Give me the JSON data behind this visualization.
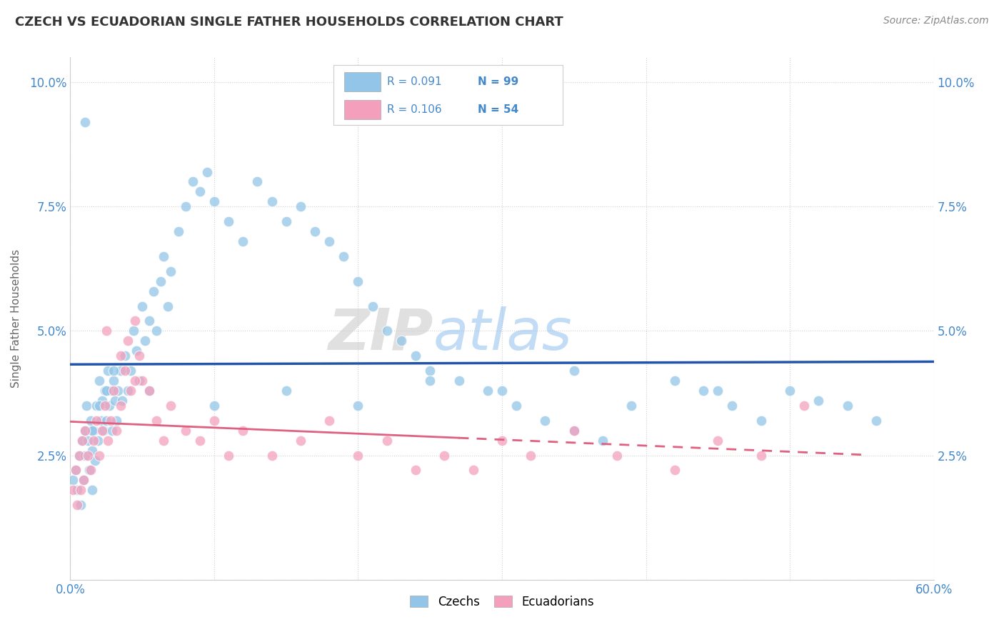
{
  "title": "CZECH VS ECUADORIAN SINGLE FATHER HOUSEHOLDS CORRELATION CHART",
  "source": "Source: ZipAtlas.com",
  "ylabel": "Single Father Households",
  "xlim": [
    0.0,
    0.6
  ],
  "ylim": [
    0.0,
    0.105
  ],
  "xticks": [
    0.0,
    0.1,
    0.2,
    0.3,
    0.4,
    0.5,
    0.6
  ],
  "xticklabels": [
    "0.0%",
    "",
    "",
    "",
    "",
    "",
    "60.0%"
  ],
  "yticks": [
    0.0,
    0.025,
    0.05,
    0.075,
    0.1
  ],
  "yticklabels": [
    "",
    "2.5%",
    "5.0%",
    "7.5%",
    "10.0%"
  ],
  "czech_R": "0.091",
  "czech_N": "99",
  "ecuadorian_R": "0.106",
  "ecuadorian_N": "54",
  "czech_color": "#92C5E8",
  "ecuadorian_color": "#F4A0BC",
  "czech_line_color": "#2255AA",
  "ecuadorian_line_color": "#E06080",
  "watermark_ZIP": "ZIP",
  "watermark_atlas": "atlas",
  "background_color": "#FFFFFF",
  "grid_color": "#D0D0D0",
  "legend_label_czech": "Czechs",
  "legend_label_ecuadorian": "Ecuadorians",
  "tick_color": "#4488CC",
  "legend_text_color": "#4488CC",
  "legend_N_color": "#4488CC",
  "czech_x": [
    0.002,
    0.004,
    0.005,
    0.006,
    0.007,
    0.008,
    0.009,
    0.01,
    0.01,
    0.011,
    0.012,
    0.013,
    0.014,
    0.015,
    0.015,
    0.016,
    0.017,
    0.018,
    0.019,
    0.02,
    0.021,
    0.022,
    0.023,
    0.024,
    0.025,
    0.026,
    0.027,
    0.028,
    0.029,
    0.03,
    0.031,
    0.032,
    0.033,
    0.035,
    0.036,
    0.038,
    0.04,
    0.042,
    0.044,
    0.046,
    0.048,
    0.05,
    0.052,
    0.055,
    0.058,
    0.06,
    0.063,
    0.065,
    0.068,
    0.07,
    0.075,
    0.08,
    0.085,
    0.09,
    0.095,
    0.1,
    0.11,
    0.12,
    0.13,
    0.14,
    0.15,
    0.16,
    0.17,
    0.18,
    0.19,
    0.2,
    0.21,
    0.22,
    0.23,
    0.24,
    0.25,
    0.27,
    0.29,
    0.31,
    0.33,
    0.35,
    0.37,
    0.39,
    0.42,
    0.44,
    0.46,
    0.48,
    0.5,
    0.52,
    0.54,
    0.56,
    0.45,
    0.35,
    0.3,
    0.25,
    0.2,
    0.15,
    0.1,
    0.055,
    0.03,
    0.025,
    0.02,
    0.015,
    0.01
  ],
  "czech_y": [
    0.02,
    0.022,
    0.018,
    0.025,
    0.015,
    0.028,
    0.02,
    0.03,
    0.025,
    0.035,
    0.028,
    0.022,
    0.032,
    0.026,
    0.018,
    0.03,
    0.024,
    0.035,
    0.028,
    0.04,
    0.032,
    0.036,
    0.03,
    0.038,
    0.032,
    0.042,
    0.035,
    0.038,
    0.03,
    0.04,
    0.036,
    0.032,
    0.038,
    0.042,
    0.036,
    0.045,
    0.038,
    0.042,
    0.05,
    0.046,
    0.04,
    0.055,
    0.048,
    0.052,
    0.058,
    0.05,
    0.06,
    0.065,
    0.055,
    0.062,
    0.07,
    0.075,
    0.08,
    0.078,
    0.082,
    0.076,
    0.072,
    0.068,
    0.08,
    0.076,
    0.072,
    0.075,
    0.07,
    0.068,
    0.065,
    0.06,
    0.055,
    0.05,
    0.048,
    0.045,
    0.042,
    0.04,
    0.038,
    0.035,
    0.032,
    0.03,
    0.028,
    0.035,
    0.04,
    0.038,
    0.035,
    0.032,
    0.038,
    0.036,
    0.035,
    0.032,
    0.038,
    0.042,
    0.038,
    0.04,
    0.035,
    0.038,
    0.035,
    0.038,
    0.042,
    0.038,
    0.035,
    0.03,
    0.092
  ],
  "ecu_x": [
    0.002,
    0.004,
    0.005,
    0.006,
    0.007,
    0.008,
    0.009,
    0.01,
    0.012,
    0.014,
    0.016,
    0.018,
    0.02,
    0.022,
    0.024,
    0.026,
    0.028,
    0.03,
    0.032,
    0.035,
    0.038,
    0.04,
    0.042,
    0.045,
    0.048,
    0.05,
    0.055,
    0.06,
    0.065,
    0.07,
    0.08,
    0.09,
    0.1,
    0.11,
    0.12,
    0.14,
    0.16,
    0.18,
    0.2,
    0.22,
    0.24,
    0.26,
    0.28,
    0.3,
    0.32,
    0.35,
    0.38,
    0.42,
    0.45,
    0.48,
    0.51,
    0.025,
    0.035,
    0.045
  ],
  "ecu_y": [
    0.018,
    0.022,
    0.015,
    0.025,
    0.018,
    0.028,
    0.02,
    0.03,
    0.025,
    0.022,
    0.028,
    0.032,
    0.025,
    0.03,
    0.035,
    0.028,
    0.032,
    0.038,
    0.03,
    0.035,
    0.042,
    0.048,
    0.038,
    0.052,
    0.045,
    0.04,
    0.038,
    0.032,
    0.028,
    0.035,
    0.03,
    0.028,
    0.032,
    0.025,
    0.03,
    0.025,
    0.028,
    0.032,
    0.025,
    0.028,
    0.022,
    0.025,
    0.022,
    0.028,
    0.025,
    0.03,
    0.025,
    0.022,
    0.028,
    0.025,
    0.035,
    0.05,
    0.045,
    0.04
  ]
}
